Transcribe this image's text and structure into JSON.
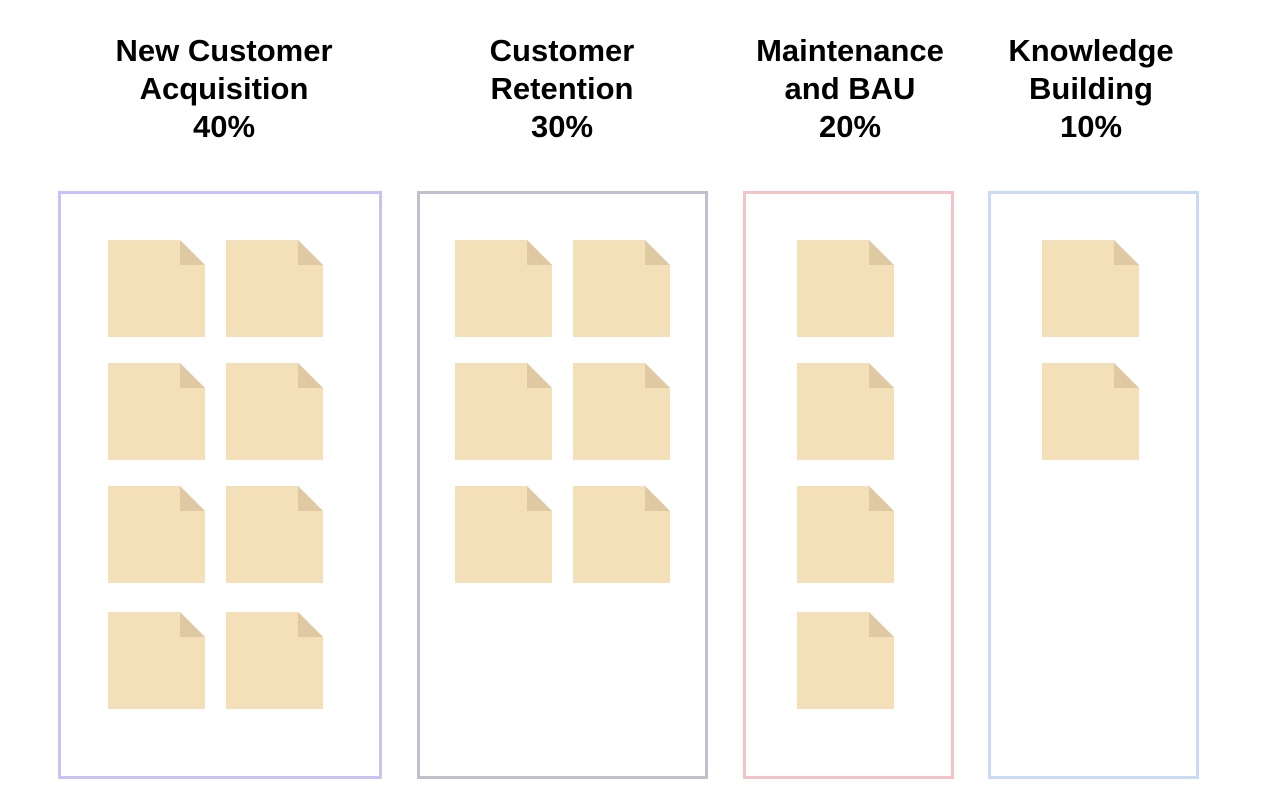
{
  "columns": [
    {
      "title_line1": "New Customer",
      "title_line2": "Acquisition",
      "percent": "40%",
      "note_count": 8,
      "border_color": "#c9c3f5"
    },
    {
      "title_line1": "Customer",
      "title_line2": "Retention",
      "percent": "30%",
      "note_count": 6,
      "border_color": "#bfc0cc"
    },
    {
      "title_line1": "Maintenance",
      "title_line2": "and BAU",
      "percent": "20%",
      "note_count": 4,
      "border_color": "#f3c3c7"
    },
    {
      "title_line1": "Knowledge",
      "title_line2": "Building",
      "percent": "10%",
      "note_count": 2,
      "border_color": "#c9daf4"
    }
  ],
  "note_colors": {
    "fill": "#f3e0b9",
    "fold": "#dfc9a3"
  }
}
